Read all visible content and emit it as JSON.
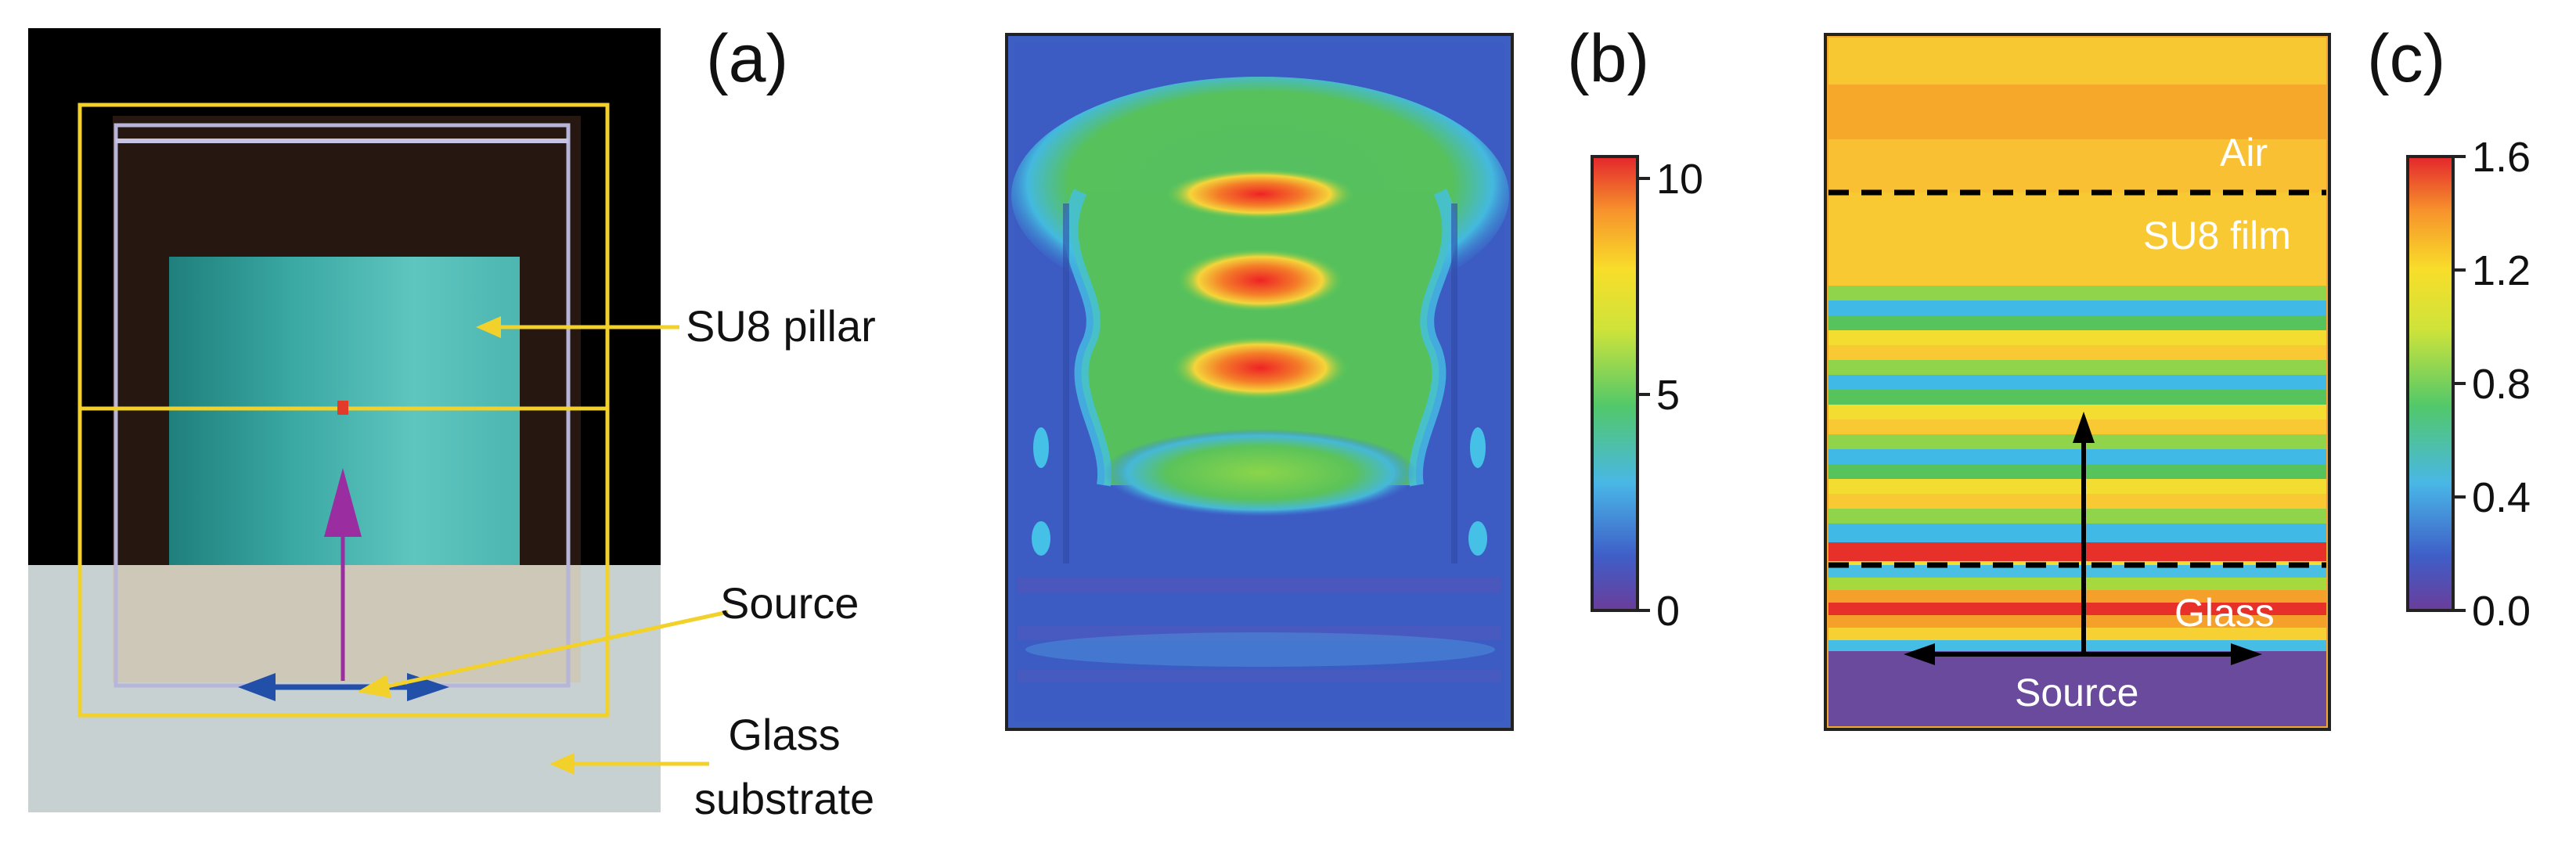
{
  "panels": {
    "a": {
      "label": "(a)",
      "annotations": {
        "su8_pillar": "SU8 pillar",
        "source": "Source",
        "glass_line1": "Glass",
        "glass_line2": "substrate"
      },
      "colors": {
        "background": "#000000",
        "substrate": "#c8d2d3",
        "pillar": "#3aa8a3",
        "monitor_box": "#f2d12a",
        "arrow_vertical": "#9a2ea0",
        "arrow_horizontal": "#2250a8",
        "leader": "#f2d12a"
      }
    },
    "b": {
      "label": "(b)",
      "colorbar": {
        "ticks": [
          "10",
          "5",
          "0"
        ],
        "tick_values": [
          10,
          5,
          0
        ],
        "range": [
          0,
          10
        ]
      }
    },
    "c": {
      "label": "(c)",
      "layers": {
        "air": "Air",
        "film": "SU8 film",
        "glass": "Glass",
        "source": "Source"
      },
      "colorbar": {
        "ticks": [
          "1.6",
          "1.2",
          "0.8",
          "0.4",
          "0.0"
        ],
        "tick_values": [
          1.6,
          1.2,
          0.8,
          0.4,
          0.0
        ],
        "range": [
          0,
          1.6
        ]
      }
    }
  }
}
